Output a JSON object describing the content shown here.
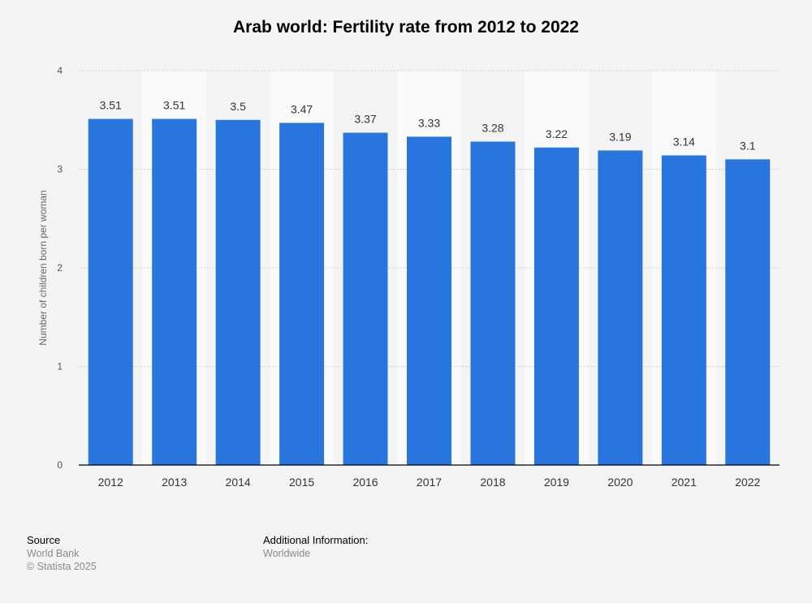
{
  "chart_data": {
    "type": "bar",
    "title": "Arab world: Fertility rate from 2012 to 2022",
    "ylabel": "Number of children born per woman",
    "xlabel": "",
    "categories": [
      "2012",
      "2013",
      "2014",
      "2015",
      "2016",
      "2017",
      "2018",
      "2019",
      "2020",
      "2021",
      "2022"
    ],
    "values": [
      3.51,
      3.51,
      3.5,
      3.47,
      3.37,
      3.33,
      3.28,
      3.22,
      3.19,
      3.14,
      3.1
    ],
    "ylim": [
      0,
      4
    ],
    "yticks": [
      0,
      1,
      2,
      3,
      4
    ],
    "grid": true,
    "bar_color": "#2876dd"
  },
  "footer": {
    "source_heading": "Source",
    "source_name": "World Bank",
    "copyright": "© Statista 2025",
    "additional_heading": "Additional Information:",
    "additional_text": "Worldwide"
  }
}
